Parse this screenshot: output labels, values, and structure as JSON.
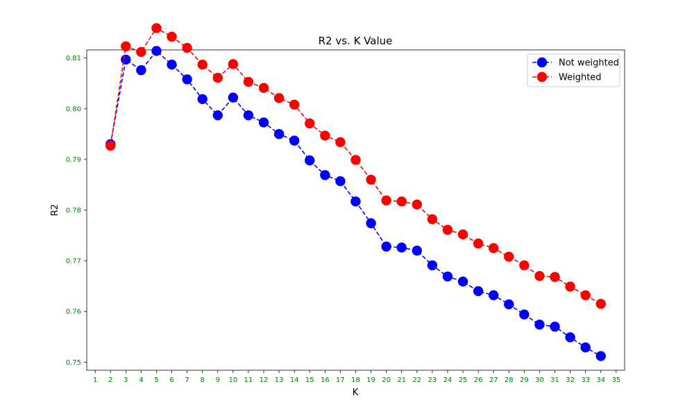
{
  "chart_data": {
    "type": "line",
    "title": "R2 vs. K Value",
    "xlabel": "K",
    "ylabel": "R2",
    "x_ticks": [
      1,
      2,
      3,
      4,
      5,
      6,
      7,
      8,
      9,
      10,
      11,
      12,
      13,
      14,
      15,
      16,
      17,
      18,
      19,
      20,
      21,
      22,
      23,
      24,
      25,
      26,
      27,
      28,
      29,
      30,
      31,
      32,
      33,
      34,
      35
    ],
    "y_ticks": [
      0.75,
      0.76,
      0.77,
      0.78,
      0.79,
      0.8,
      0.81
    ],
    "y_tick_labels": [
      "0.75",
      "0.76",
      "0.77",
      "0.78",
      "0.79",
      "0.80",
      "0.81"
    ],
    "xlim": [
      0.45,
      35.55
    ],
    "ylim": [
      0.7484,
      0.8116
    ],
    "tick_color": "#008000",
    "grid": false,
    "legend_position": "upper right",
    "x": [
      2,
      3,
      4,
      5,
      6,
      7,
      8,
      9,
      10,
      11,
      12,
      13,
      14,
      15,
      16,
      17,
      18,
      19,
      20,
      21,
      22,
      23,
      24,
      25,
      26,
      27,
      28,
      29,
      30,
      31,
      32,
      33,
      34
    ],
    "series": [
      {
        "name": "Not weighted",
        "color": "#0000ff",
        "values": [
          0.793,
          0.8097,
          0.8076,
          0.8114,
          0.8087,
          0.8058,
          0.8019,
          0.7987,
          0.8022,
          0.7987,
          0.7973,
          0.795,
          0.7937,
          0.7898,
          0.7869,
          0.7857,
          0.7817,
          0.7774,
          0.7728,
          0.7726,
          0.772,
          0.7691,
          0.7669,
          0.7659,
          0.764,
          0.7632,
          0.7614,
          0.7594,
          0.7574,
          0.757,
          0.7549,
          0.7529,
          0.7512
        ]
      },
      {
        "name": "Weighted",
        "color": "#ff0000",
        "values": [
          0.7927,
          0.8123,
          0.8112,
          0.8159,
          0.8142,
          0.812,
          0.8087,
          0.8061,
          0.8088,
          0.8053,
          0.8041,
          0.8021,
          0.8008,
          0.7971,
          0.7947,
          0.7934,
          0.7899,
          0.786,
          0.7819,
          0.7817,
          0.7811,
          0.7782,
          0.7761,
          0.7752,
          0.7734,
          0.7725,
          0.7708,
          0.7691,
          0.767,
          0.7668,
          0.7649,
          0.7632,
          0.7615
        ]
      }
    ]
  }
}
